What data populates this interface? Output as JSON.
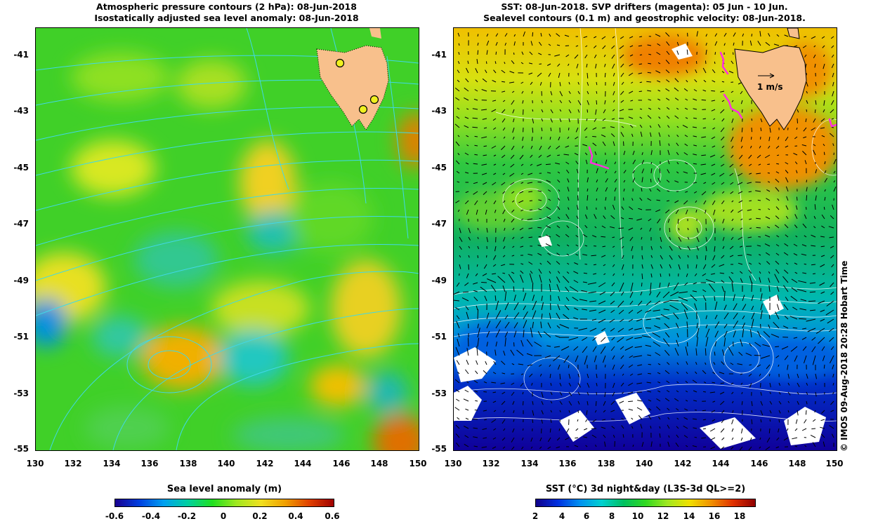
{
  "left_panel": {
    "title_line1": "Atmospheric pressure contours (2 hPa): 08-Jun-2018",
    "title_line2": "Isostatically adjusted sea level anomaly: 08-Jun-2018",
    "colorbar_title": "Sea level anomaly (m)",
    "colorbar_ticks": [
      "-0.6",
      "-0.4",
      "-0.2",
      "0",
      "0.2",
      "0.4",
      "0.6"
    ]
  },
  "right_panel": {
    "title_line1": "SST: 08-Jun-2018. SVP drifters (magenta): 05 Jun - 10 Jun.",
    "title_line2": "Sealevel contours (0.1 m) and geostrophic velocity: 08-Jun-2018.",
    "velocity_scale_label": "1 m/s",
    "colorbar_title": "SST (°C) 3d night&day (L3S-3d QL>=2)",
    "colorbar_ticks": [
      "2",
      "4",
      "6",
      "8",
      "10",
      "12",
      "14",
      "16",
      "18"
    ]
  },
  "axes": {
    "lat_ticks": [
      "-41",
      "-43",
      "-45",
      "-47",
      "-49",
      "-51",
      "-53",
      "-55"
    ],
    "lon_ticks": [
      "130",
      "132",
      "134",
      "136",
      "138",
      "140",
      "142",
      "144",
      "146",
      "148",
      "150"
    ]
  },
  "credit": "© IMOS 09-Aug-2018 20:28 Hobart Time",
  "colors": {
    "land": "#f8c08c",
    "slp_contour": "#40d8e8",
    "ssh_contour": "#ffffff",
    "drifter": "#ff30e0",
    "sla_colormap": [
      "#1a0090",
      "#0040e0",
      "#00a0f0",
      "#00d0a0",
      "#20e020",
      "#a0e820",
      "#f0e020",
      "#f0a000",
      "#e04000",
      "#a00000"
    ],
    "sst_colormap": [
      "#10008a",
      "#0030e0",
      "#0090f0",
      "#00d0d0",
      "#00c060",
      "#30d820",
      "#a0e820",
      "#f0e000",
      "#f09000",
      "#e03000",
      "#900000"
    ]
  }
}
